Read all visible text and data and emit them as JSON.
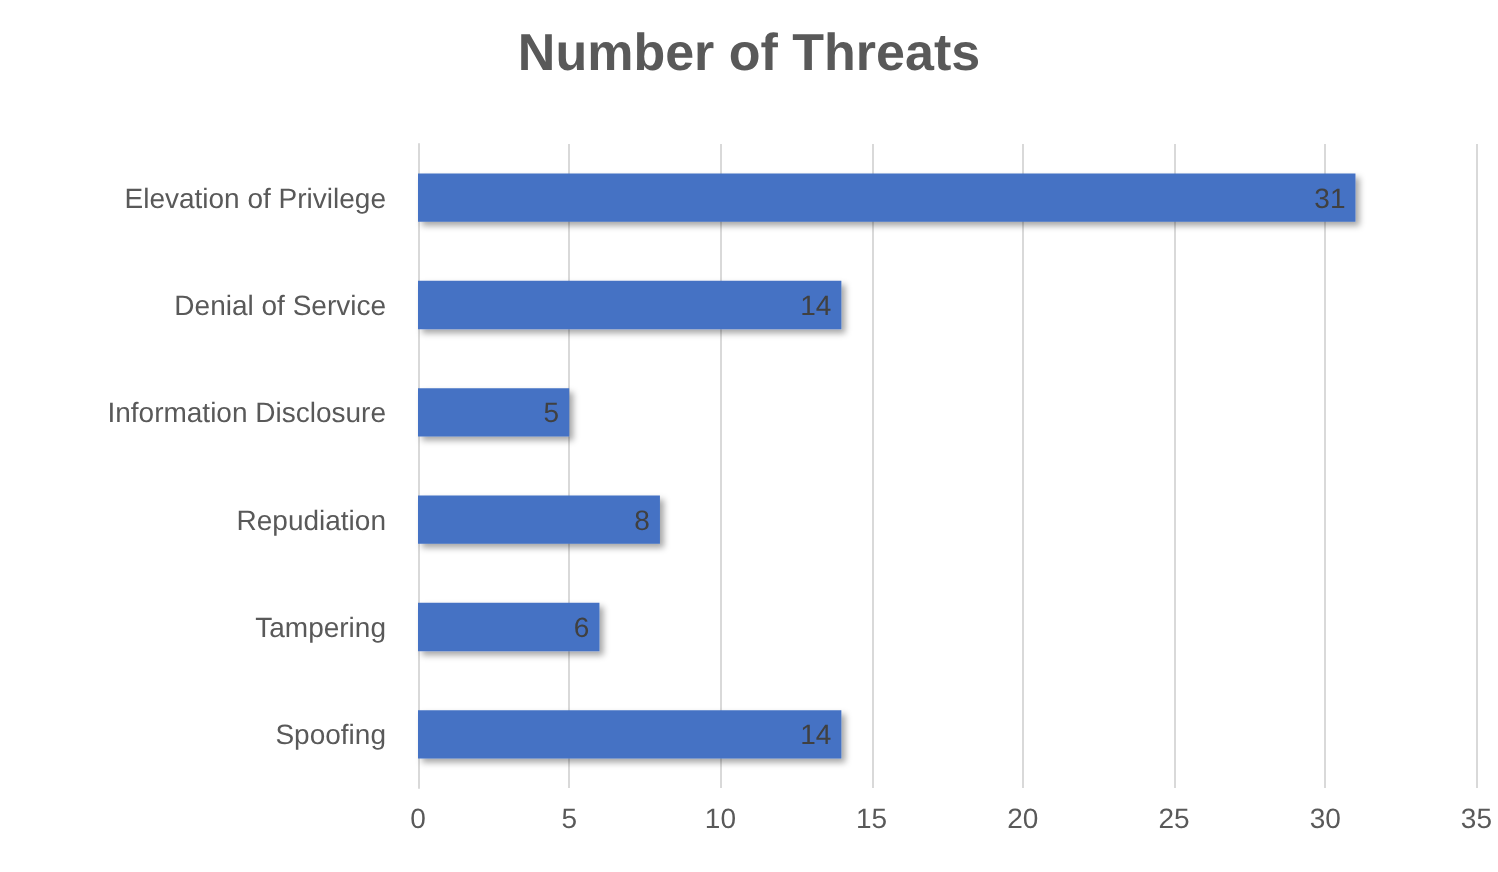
{
  "chart_data": {
    "type": "bar",
    "orientation": "horizontal",
    "title": "Number of Threats",
    "categories": [
      "Elevation of Privilege",
      "Denial of Service",
      "Information Disclosure",
      "Repudiation",
      "Tampering",
      "Spoofing"
    ],
    "values": [
      31,
      14,
      5,
      8,
      6,
      14
    ],
    "color": "#4472c4",
    "xlim": [
      0,
      35
    ],
    "xticks": [
      0,
      5,
      10,
      15,
      20,
      25,
      30,
      35
    ],
    "grid": "x",
    "data_labels": true
  }
}
